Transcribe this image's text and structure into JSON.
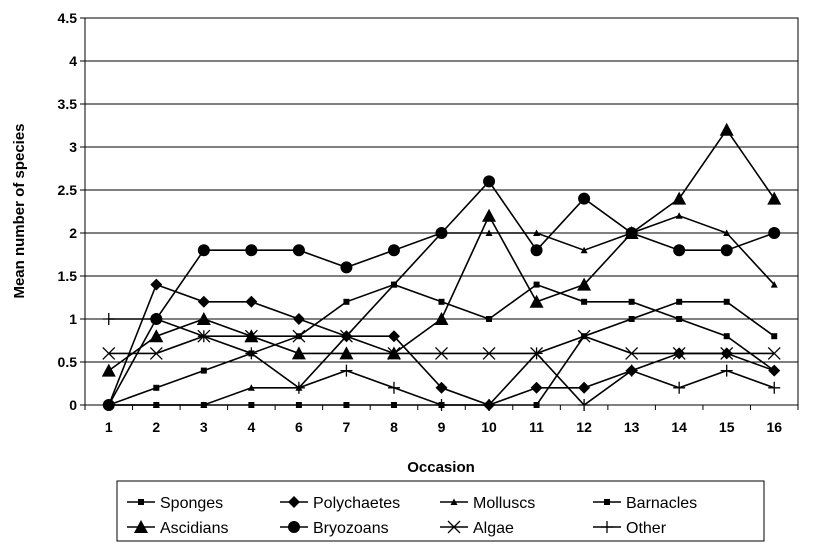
{
  "chart_data": {
    "type": "line",
    "title": "",
    "xlabel": "Occasion",
    "ylabel": "Mean number of species",
    "categories": [
      "1",
      "2",
      "3",
      "4",
      "6",
      "7",
      "8",
      "9",
      "10",
      "11",
      "12",
      "13",
      "14",
      "15",
      "16"
    ],
    "ylim": [
      0,
      4.5
    ],
    "yticks": [
      "0",
      "0.5",
      "1",
      "1.5",
      "2",
      "2.5",
      "3",
      "3.5",
      "4",
      "4.5"
    ],
    "grid": "horizontal",
    "legend_position": "bottom",
    "series": [
      {
        "name": "Sponges",
        "marker": "square-small",
        "values": [
          0,
          0.2,
          0.4,
          0.6,
          0.8,
          1.2,
          1.4,
          1.2,
          1.0,
          1.4,
          1.2,
          1.2,
          1.0,
          0.8,
          0.4
        ]
      },
      {
        "name": "Polychaetes",
        "marker": "diamond",
        "values": [
          0,
          1.4,
          1.2,
          1.2,
          1.0,
          0.8,
          0.8,
          0.2,
          0,
          0.2,
          0.2,
          0.4,
          0.6,
          0.6,
          0.4
        ]
      },
      {
        "name": "Molluscs",
        "marker": "triangle-small",
        "values": [
          0,
          0,
          0,
          0.2,
          0.2,
          0.8,
          1.4,
          2.0,
          2.0,
          2.0,
          1.8,
          2.0,
          2.2,
          2.0,
          1.4
        ]
      },
      {
        "name": "Barnacles",
        "marker": "square-small",
        "values": [
          0,
          0,
          0,
          0,
          0,
          0,
          0,
          0,
          0,
          0,
          0.8,
          1.0,
          1.2,
          1.2,
          0.8
        ]
      },
      {
        "name": "Ascidians",
        "marker": "triangle",
        "values": [
          0.4,
          0.8,
          1.0,
          0.8,
          0.6,
          0.6,
          0.6,
          1.0,
          2.2,
          1.2,
          1.4,
          2.0,
          2.4,
          3.2,
          2.4
        ]
      },
      {
        "name": "Bryozoans",
        "marker": "circle",
        "values": [
          0,
          1.0,
          1.8,
          1.8,
          1.8,
          1.6,
          1.8,
          2.0,
          2.6,
          1.8,
          2.4,
          2.0,
          1.8,
          1.8,
          2.0
        ]
      },
      {
        "name": "Algae",
        "marker": "x",
        "values": [
          0.6,
          0.6,
          0.8,
          0.8,
          0.8,
          0.8,
          0.6,
          0.6,
          0.6,
          0.6,
          0.8,
          0.6,
          0.6,
          0.6,
          0.6
        ]
      },
      {
        "name": "Other",
        "marker": "plus",
        "values": [
          1.0,
          1.0,
          0.8,
          0.6,
          0.2,
          0.4,
          0.2,
          0,
          0,
          0.6,
          0,
          0.4,
          0.2,
          0.4,
          0.2
        ]
      }
    ]
  }
}
